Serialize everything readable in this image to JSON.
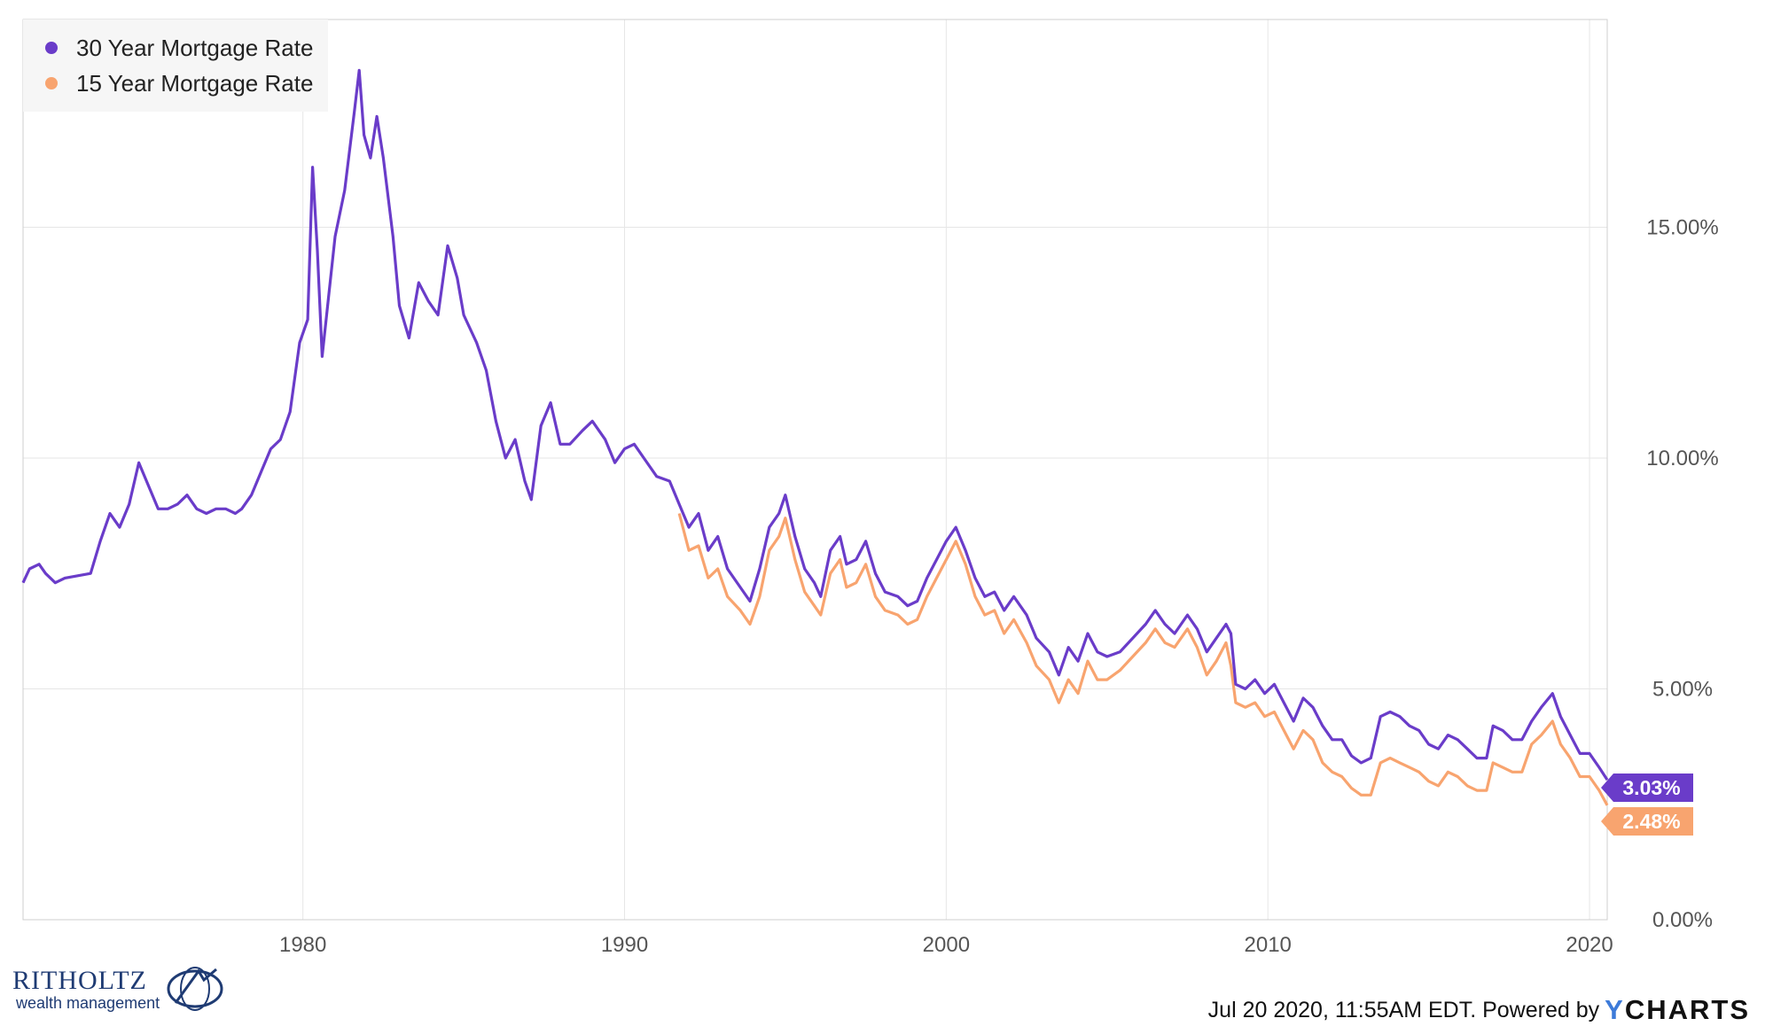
{
  "chart_data": {
    "type": "line",
    "xlabel": "",
    "ylabel": "",
    "x_range": [
      1971.3,
      2020.55
    ],
    "ylim": [
      0,
      19.5
    ],
    "grid": true,
    "legend_position": "top-left",
    "x_ticks": [
      1980,
      1990,
      2000,
      2010,
      2020
    ],
    "x_tick_labels": [
      "1980",
      "1990",
      "2000",
      "2010",
      "2020"
    ],
    "y_ticks": [
      0,
      5,
      10,
      15
    ],
    "y_tick_labels": [
      "0.00%",
      "5.00%",
      "10.00%",
      "15.00%"
    ],
    "series": [
      {
        "name": "30 Year Mortgage Rate",
        "color": "#6a3cc9",
        "end_label": "3.03%",
        "points": [
          [
            1971.3,
            7.3
          ],
          [
            1971.5,
            7.6
          ],
          [
            1971.8,
            7.7
          ],
          [
            1972.0,
            7.5
          ],
          [
            1972.3,
            7.3
          ],
          [
            1972.6,
            7.4
          ],
          [
            1973.0,
            7.45
          ],
          [
            1973.4,
            7.5
          ],
          [
            1973.7,
            8.2
          ],
          [
            1974.0,
            8.8
          ],
          [
            1974.3,
            8.5
          ],
          [
            1974.6,
            9.0
          ],
          [
            1974.9,
            9.9
          ],
          [
            1975.2,
            9.4
          ],
          [
            1975.5,
            8.9
          ],
          [
            1975.8,
            8.9
          ],
          [
            1976.1,
            9.0
          ],
          [
            1976.4,
            9.2
          ],
          [
            1976.7,
            8.9
          ],
          [
            1977.0,
            8.8
          ],
          [
            1977.3,
            8.9
          ],
          [
            1977.6,
            8.9
          ],
          [
            1977.9,
            8.8
          ],
          [
            1978.1,
            8.9
          ],
          [
            1978.4,
            9.2
          ],
          [
            1978.7,
            9.7
          ],
          [
            1979.0,
            10.2
          ],
          [
            1979.3,
            10.4
          ],
          [
            1979.6,
            11.0
          ],
          [
            1979.9,
            12.5
          ],
          [
            1980.15,
            13.0
          ],
          [
            1980.3,
            16.3
          ],
          [
            1980.45,
            14.5
          ],
          [
            1980.6,
            12.2
          ],
          [
            1980.8,
            13.5
          ],
          [
            1981.0,
            14.8
          ],
          [
            1981.3,
            15.8
          ],
          [
            1981.6,
            17.5
          ],
          [
            1981.75,
            18.4
          ],
          [
            1981.9,
            17.0
          ],
          [
            1982.1,
            16.5
          ],
          [
            1982.3,
            17.4
          ],
          [
            1982.5,
            16.5
          ],
          [
            1982.8,
            14.8
          ],
          [
            1983.0,
            13.3
          ],
          [
            1983.3,
            12.6
          ],
          [
            1983.6,
            13.8
          ],
          [
            1983.9,
            13.4
          ],
          [
            1984.2,
            13.1
          ],
          [
            1984.5,
            14.6
          ],
          [
            1984.8,
            13.9
          ],
          [
            1985.0,
            13.1
          ],
          [
            1985.4,
            12.5
          ],
          [
            1985.7,
            11.9
          ],
          [
            1986.0,
            10.8
          ],
          [
            1986.3,
            10.0
          ],
          [
            1986.6,
            10.4
          ],
          [
            1986.9,
            9.5
          ],
          [
            1987.1,
            9.1
          ],
          [
            1987.4,
            10.7
          ],
          [
            1987.7,
            11.2
          ],
          [
            1988.0,
            10.3
          ],
          [
            1988.3,
            10.3
          ],
          [
            1988.7,
            10.6
          ],
          [
            1989.0,
            10.8
          ],
          [
            1989.4,
            10.4
          ],
          [
            1989.7,
            9.9
          ],
          [
            1990.0,
            10.2
          ],
          [
            1990.3,
            10.3
          ],
          [
            1990.6,
            10.0
          ],
          [
            1991.0,
            9.6
          ],
          [
            1991.4,
            9.5
          ],
          [
            1991.7,
            9.0
          ],
          [
            1992.0,
            8.5
          ],
          [
            1992.3,
            8.8
          ],
          [
            1992.6,
            8.0
          ],
          [
            1992.9,
            8.3
          ],
          [
            1993.2,
            7.6
          ],
          [
            1993.6,
            7.2
          ],
          [
            1993.9,
            6.9
          ],
          [
            1994.2,
            7.6
          ],
          [
            1994.5,
            8.5
          ],
          [
            1994.8,
            8.8
          ],
          [
            1995.0,
            9.2
          ],
          [
            1995.3,
            8.3
          ],
          [
            1995.6,
            7.6
          ],
          [
            1995.9,
            7.3
          ],
          [
            1996.1,
            7.0
          ],
          [
            1996.4,
            8.0
          ],
          [
            1996.7,
            8.3
          ],
          [
            1996.9,
            7.7
          ],
          [
            1997.2,
            7.8
          ],
          [
            1997.5,
            8.2
          ],
          [
            1997.8,
            7.5
          ],
          [
            1998.1,
            7.1
          ],
          [
            1998.5,
            7.0
          ],
          [
            1998.8,
            6.8
          ],
          [
            1999.1,
            6.9
          ],
          [
            1999.4,
            7.4
          ],
          [
            1999.7,
            7.8
          ],
          [
            2000.0,
            8.2
          ],
          [
            2000.3,
            8.5
          ],
          [
            2000.6,
            8.0
          ],
          [
            2000.9,
            7.4
          ],
          [
            2001.2,
            7.0
          ],
          [
            2001.5,
            7.1
          ],
          [
            2001.8,
            6.7
          ],
          [
            2002.1,
            7.0
          ],
          [
            2002.5,
            6.6
          ],
          [
            2002.8,
            6.1
          ],
          [
            2003.2,
            5.8
          ],
          [
            2003.5,
            5.3
          ],
          [
            2003.8,
            5.9
          ],
          [
            2004.1,
            5.6
          ],
          [
            2004.4,
            6.2
          ],
          [
            2004.7,
            5.8
          ],
          [
            2005.0,
            5.7
          ],
          [
            2005.4,
            5.8
          ],
          [
            2005.8,
            6.1
          ],
          [
            2006.2,
            6.4
          ],
          [
            2006.5,
            6.7
          ],
          [
            2006.8,
            6.4
          ],
          [
            2007.1,
            6.2
          ],
          [
            2007.5,
            6.6
          ],
          [
            2007.8,
            6.3
          ],
          [
            2008.1,
            5.8
          ],
          [
            2008.4,
            6.1
          ],
          [
            2008.7,
            6.4
          ],
          [
            2008.85,
            6.2
          ],
          [
            2009.0,
            5.1
          ],
          [
            2009.3,
            5.0
          ],
          [
            2009.6,
            5.2
          ],
          [
            2009.9,
            4.9
          ],
          [
            2010.2,
            5.1
          ],
          [
            2010.5,
            4.7
          ],
          [
            2010.8,
            4.3
          ],
          [
            2011.1,
            4.8
          ],
          [
            2011.4,
            4.6
          ],
          [
            2011.7,
            4.2
          ],
          [
            2012.0,
            3.9
          ],
          [
            2012.3,
            3.9
          ],
          [
            2012.6,
            3.55
          ],
          [
            2012.9,
            3.4
          ],
          [
            2013.2,
            3.5
          ],
          [
            2013.5,
            4.4
          ],
          [
            2013.8,
            4.5
          ],
          [
            2014.1,
            4.4
          ],
          [
            2014.4,
            4.2
          ],
          [
            2014.7,
            4.1
          ],
          [
            2015.0,
            3.8
          ],
          [
            2015.3,
            3.7
          ],
          [
            2015.6,
            4.0
          ],
          [
            2015.9,
            3.9
          ],
          [
            2016.2,
            3.7
          ],
          [
            2016.5,
            3.5
          ],
          [
            2016.8,
            3.5
          ],
          [
            2017.0,
            4.2
          ],
          [
            2017.3,
            4.1
          ],
          [
            2017.6,
            3.9
          ],
          [
            2017.9,
            3.9
          ],
          [
            2018.2,
            4.3
          ],
          [
            2018.5,
            4.6
          ],
          [
            2018.85,
            4.9
          ],
          [
            2019.1,
            4.4
          ],
          [
            2019.4,
            4.0
          ],
          [
            2019.7,
            3.6
          ],
          [
            2020.0,
            3.6
          ],
          [
            2020.3,
            3.3
          ],
          [
            2020.55,
            3.03
          ]
        ]
      },
      {
        "name": "15 Year Mortgage Rate",
        "color": "#f8a46f",
        "end_label": "2.48%",
        "points": [
          [
            1991.7,
            8.8
          ],
          [
            1992.0,
            8.0
          ],
          [
            1992.3,
            8.1
          ],
          [
            1992.6,
            7.4
          ],
          [
            1992.9,
            7.6
          ],
          [
            1993.2,
            7.0
          ],
          [
            1993.6,
            6.7
          ],
          [
            1993.9,
            6.4
          ],
          [
            1994.2,
            7.0
          ],
          [
            1994.5,
            8.0
          ],
          [
            1994.8,
            8.3
          ],
          [
            1995.0,
            8.7
          ],
          [
            1995.3,
            7.8
          ],
          [
            1995.6,
            7.1
          ],
          [
            1995.9,
            6.8
          ],
          [
            1996.1,
            6.6
          ],
          [
            1996.4,
            7.5
          ],
          [
            1996.7,
            7.8
          ],
          [
            1996.9,
            7.2
          ],
          [
            1997.2,
            7.3
          ],
          [
            1997.5,
            7.7
          ],
          [
            1997.8,
            7.0
          ],
          [
            1998.1,
            6.7
          ],
          [
            1998.5,
            6.6
          ],
          [
            1998.8,
            6.4
          ],
          [
            1999.1,
            6.5
          ],
          [
            1999.4,
            7.0
          ],
          [
            1999.7,
            7.4
          ],
          [
            2000.0,
            7.8
          ],
          [
            2000.3,
            8.2
          ],
          [
            2000.6,
            7.7
          ],
          [
            2000.9,
            7.0
          ],
          [
            2001.2,
            6.6
          ],
          [
            2001.5,
            6.7
          ],
          [
            2001.8,
            6.2
          ],
          [
            2002.1,
            6.5
          ],
          [
            2002.5,
            6.0
          ],
          [
            2002.8,
            5.5
          ],
          [
            2003.2,
            5.2
          ],
          [
            2003.5,
            4.7
          ],
          [
            2003.8,
            5.2
          ],
          [
            2004.1,
            4.9
          ],
          [
            2004.4,
            5.6
          ],
          [
            2004.7,
            5.2
          ],
          [
            2005.0,
            5.2
          ],
          [
            2005.4,
            5.4
          ],
          [
            2005.8,
            5.7
          ],
          [
            2006.2,
            6.0
          ],
          [
            2006.5,
            6.3
          ],
          [
            2006.8,
            6.0
          ],
          [
            2007.1,
            5.9
          ],
          [
            2007.5,
            6.3
          ],
          [
            2007.8,
            5.9
          ],
          [
            2008.1,
            5.3
          ],
          [
            2008.4,
            5.6
          ],
          [
            2008.7,
            6.0
          ],
          [
            2008.85,
            5.5
          ],
          [
            2009.0,
            4.7
          ],
          [
            2009.3,
            4.6
          ],
          [
            2009.6,
            4.7
          ],
          [
            2009.9,
            4.4
          ],
          [
            2010.2,
            4.5
          ],
          [
            2010.5,
            4.1
          ],
          [
            2010.8,
            3.7
          ],
          [
            2011.1,
            4.1
          ],
          [
            2011.4,
            3.9
          ],
          [
            2011.7,
            3.4
          ],
          [
            2012.0,
            3.2
          ],
          [
            2012.3,
            3.1
          ],
          [
            2012.6,
            2.85
          ],
          [
            2012.9,
            2.7
          ],
          [
            2013.2,
            2.7
          ],
          [
            2013.5,
            3.4
          ],
          [
            2013.8,
            3.5
          ],
          [
            2014.1,
            3.4
          ],
          [
            2014.4,
            3.3
          ],
          [
            2014.7,
            3.2
          ],
          [
            2015.0,
            3.0
          ],
          [
            2015.3,
            2.9
          ],
          [
            2015.6,
            3.2
          ],
          [
            2015.9,
            3.1
          ],
          [
            2016.2,
            2.9
          ],
          [
            2016.5,
            2.8
          ],
          [
            2016.8,
            2.8
          ],
          [
            2017.0,
            3.4
          ],
          [
            2017.3,
            3.3
          ],
          [
            2017.6,
            3.2
          ],
          [
            2017.9,
            3.2
          ],
          [
            2018.2,
            3.8
          ],
          [
            2018.5,
            4.0
          ],
          [
            2018.85,
            4.3
          ],
          [
            2019.1,
            3.8
          ],
          [
            2019.4,
            3.5
          ],
          [
            2019.7,
            3.1
          ],
          [
            2020.0,
            3.1
          ],
          [
            2020.3,
            2.8
          ],
          [
            2020.55,
            2.48
          ]
        ]
      }
    ]
  },
  "footer": {
    "timestamp": "Jul 20 2020, 11:55AM EDT. Powered by",
    "brand_y": "Y",
    "brand_rest": "CHARTS"
  },
  "logo": {
    "name": "RITHOLTZ",
    "sub": "wealth management"
  }
}
